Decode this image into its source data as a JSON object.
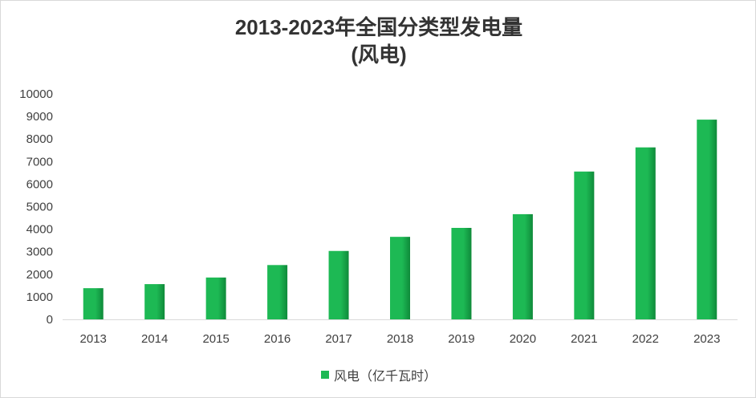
{
  "chart_data": {
    "type": "bar",
    "title": [
      "2013-2023年全国分类型发电量",
      "(风电)"
    ],
    "categories": [
      "2013",
      "2014",
      "2015",
      "2016",
      "2017",
      "2018",
      "2019",
      "2020",
      "2021",
      "2022",
      "2023"
    ],
    "series": [
      {
        "name": "风电（亿千瓦时）",
        "color": "#1db954",
        "values": [
          1383,
          1563,
          1856,
          2409,
          3034,
          3660,
          4057,
          4665,
          6556,
          7627,
          8858
        ]
      }
    ],
    "yticks": [
      "0",
      "1000",
      "2000",
      "3000",
      "4000",
      "5000",
      "6000",
      "7000",
      "8000",
      "9000",
      "10000"
    ],
    "ylim": [
      0,
      10000
    ],
    "grid": false,
    "legend": "bottom"
  }
}
